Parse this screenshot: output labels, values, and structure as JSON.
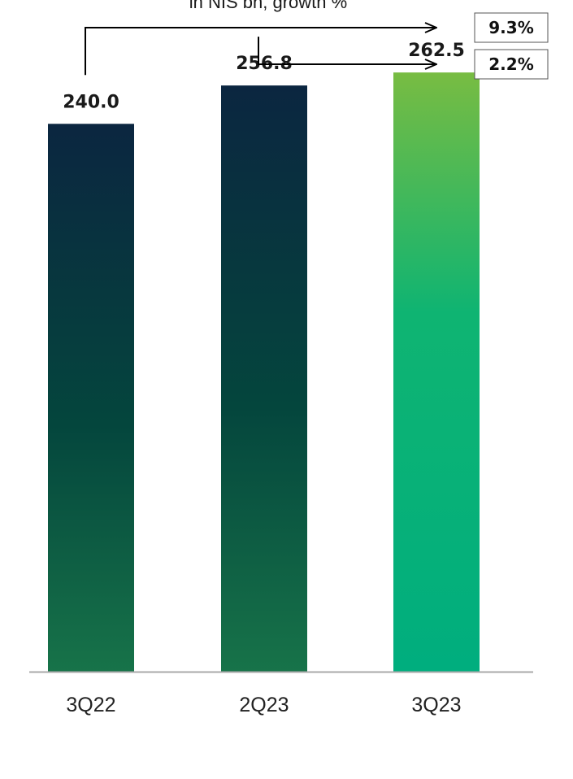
{
  "chart_data": {
    "type": "bar",
    "subtitle": "in NIS bn, growth %",
    "categories": [
      "3Q22",
      "2Q23",
      "3Q23"
    ],
    "values": [
      240.0,
      256.8,
      262.5
    ],
    "value_labels": [
      "240.0",
      "256.8",
      "262.5"
    ],
    "ylim": [
      0,
      280
    ],
    "grid": false,
    "legend": "none",
    "growth_annotations": [
      {
        "from": "3Q22",
        "to": "3Q23",
        "label": "9.3%"
      },
      {
        "from": "2Q23",
        "to": "3Q23",
        "label": "2.2%"
      }
    ],
    "colors": {
      "dark_bar_top": "#0b2640",
      "dark_bar_mid": "#04463d",
      "dark_bar_bottom": "#177349",
      "highlight_bar_top": "#78bc42",
      "highlight_bar_mid": "#0fb472",
      "highlight_bar_bottom": "#00ae7e",
      "axis": "#aaaaaa"
    }
  }
}
